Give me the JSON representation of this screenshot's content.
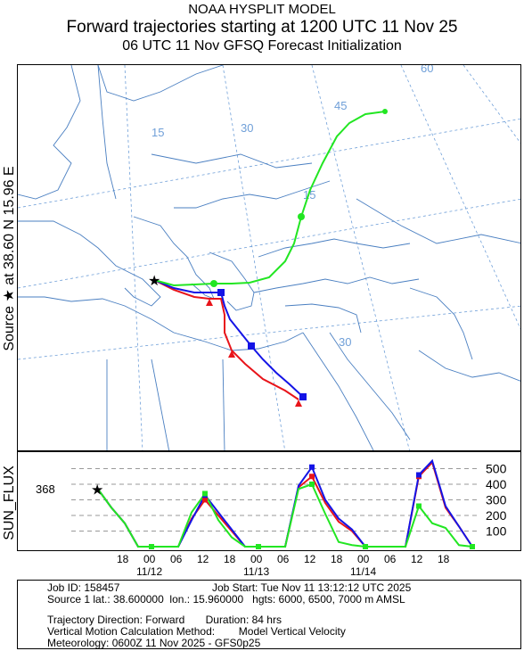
{
  "header": {
    "model": "NOAA HYSPLIT MODEL",
    "title": "Forward trajectories starting at 1200 UTC 11 Nov 25",
    "subtitle": "06 UTC 11 Nov    GFSQ  Forecast Initialization"
  },
  "side_label": "Source ★ at    38.60 N   15.96 E",
  "map": {
    "source_star": {
      "lat": 38.6,
      "lon": 15.96
    },
    "grid_labels": [
      "60",
      "45",
      "30",
      "15",
      "15",
      "30"
    ],
    "colors": {
      "red": "#e8141a",
      "blue": "#1414e6",
      "green": "#22e622",
      "coast": "#4a7fc1",
      "grid": "#6f9fd8"
    }
  },
  "trajectories": [
    {
      "name": "red",
      "color": "#e8141a",
      "height_m": 6000
    },
    {
      "name": "blue",
      "color": "#1414e6",
      "height_m": 6500
    },
    {
      "name": "green",
      "color": "#22e622",
      "height_m": 7000
    }
  ],
  "chart_data": {
    "type": "line",
    "ylabel": "SUN_FLUX",
    "start_value": "368",
    "y_ticks": [
      "500",
      "400",
      "300",
      "200",
      "100"
    ],
    "ylim": [
      0,
      560
    ],
    "x_ticks": [
      "18",
      "00",
      "06",
      "12",
      "18",
      "00",
      "06",
      "12",
      "18",
      "00",
      "06",
      "12",
      "18"
    ],
    "date_labels": [
      "11/12",
      "11/13",
      "11/14"
    ],
    "x": [
      0,
      3,
      6,
      9,
      12,
      15,
      18,
      21,
      24,
      27,
      30,
      33,
      36,
      39,
      42,
      45,
      48,
      51,
      54,
      57,
      60,
      63,
      66,
      69,
      72,
      75,
      78,
      81,
      84
    ],
    "series": [
      {
        "name": "red",
        "color": "#e8141a",
        "values": [
          368,
          250,
          150,
          0,
          0,
          0,
          0,
          180,
          300,
          200,
          100,
          0,
          0,
          0,
          0,
          380,
          450,
          280,
          160,
          100,
          0,
          0,
          0,
          0,
          450,
          540,
          250,
          130,
          0
        ]
      },
      {
        "name": "blue",
        "color": "#1414e6",
        "values": [
          368,
          250,
          150,
          0,
          0,
          0,
          0,
          170,
          330,
          220,
          110,
          0,
          0,
          0,
          0,
          390,
          510,
          300,
          180,
          110,
          0,
          0,
          0,
          0,
          460,
          550,
          260,
          130,
          0
        ]
      },
      {
        "name": "green",
        "color": "#22e622",
        "values": [
          368,
          250,
          150,
          0,
          0,
          0,
          0,
          220,
          340,
          170,
          60,
          0,
          0,
          0,
          0,
          370,
          400,
          210,
          30,
          10,
          0,
          0,
          0,
          0,
          260,
          150,
          120,
          10,
          0
        ]
      }
    ]
  },
  "info": {
    "job_id": "Job ID: 158457",
    "job_start": "Job Start: Tue Nov 11 13:12:12 UTC 2025",
    "source": "Source 1 lat.: 38.600000  lon.: 15.960000   hgts: 6000, 6500, 7000 m AMSL",
    "direction": "Trajectory Direction: Forward       Duration: 84 hrs",
    "vertical": "Vertical Motion Calculation Method:        Model Vertical Velocity",
    "meteorology": "Meteorology: 0600Z 11 Nov 2025 - GFS0p25"
  }
}
